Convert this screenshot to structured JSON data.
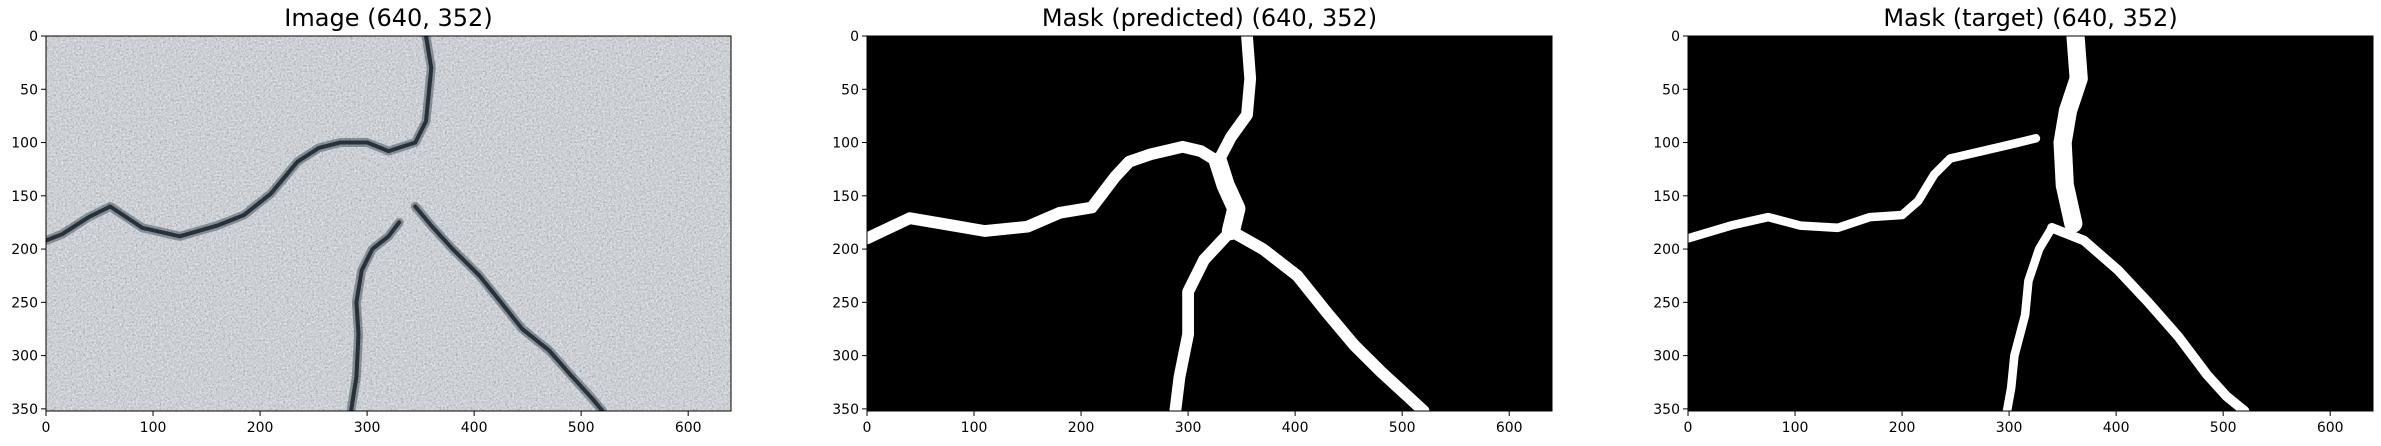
{
  "chart_data": [
    {
      "type": "image",
      "title": "Image (640, 352)",
      "xlim": [
        0,
        640
      ],
      "ylim": [
        352,
        0
      ],
      "xticks": [
        0,
        100,
        200,
        300,
        400,
        500,
        600
      ],
      "yticks": [
        0,
        50,
        100,
        150,
        200,
        250,
        300,
        350
      ],
      "content": "asphalt photograph with cracks",
      "cracks": [
        [
          [
            0,
            192
          ],
          [
            15,
            186
          ],
          [
            40,
            170
          ],
          [
            60,
            160
          ],
          [
            90,
            180
          ],
          [
            125,
            188
          ],
          [
            160,
            178
          ],
          [
            185,
            168
          ],
          [
            210,
            148
          ],
          [
            235,
            118
          ],
          [
            255,
            105
          ],
          [
            275,
            100
          ],
          [
            300,
            100
          ],
          [
            320,
            108
          ],
          [
            345,
            100
          ],
          [
            355,
            80
          ],
          [
            360,
            30
          ],
          [
            355,
            0
          ]
        ],
        [
          [
            345,
            160
          ],
          [
            360,
            178
          ],
          [
            380,
            200
          ],
          [
            405,
            225
          ],
          [
            425,
            250
          ],
          [
            445,
            275
          ],
          [
            470,
            295
          ],
          [
            490,
            318
          ],
          [
            510,
            340
          ],
          [
            520,
            352
          ]
        ],
        [
          [
            330,
            175
          ],
          [
            320,
            188
          ],
          [
            305,
            200
          ],
          [
            295,
            220
          ],
          [
            290,
            250
          ],
          [
            292,
            280
          ],
          [
            290,
            320
          ],
          [
            285,
            352
          ]
        ]
      ],
      "colors": {
        "asphalt": "#69737f",
        "crack": "#27313c"
      }
    },
    {
      "type": "mask",
      "title": "Mask (predicted) (640, 352)",
      "xlim": [
        0,
        640
      ],
      "ylim": [
        352,
        0
      ],
      "xticks": [
        0,
        100,
        200,
        300,
        400,
        500,
        600
      ],
      "yticks": [
        0,
        50,
        100,
        150,
        200,
        250,
        300,
        350
      ],
      "polylines": [
        {
          "points": [
            [
              0,
              190
            ],
            [
              40,
              171
            ],
            [
              75,
              177
            ],
            [
              110,
              183
            ],
            [
              150,
              179
            ],
            [
              180,
              166
            ],
            [
              210,
              161
            ],
            [
              232,
              132
            ],
            [
              245,
              118
            ],
            [
              265,
              111
            ],
            [
              295,
              104
            ],
            [
              312,
              108
            ],
            [
              328,
              118
            ],
            [
              340,
              95
            ],
            [
              355,
              74
            ],
            [
              358,
              40
            ],
            [
              355,
              0
            ]
          ],
          "width": 11
        },
        {
          "points": [
            [
              328,
              118
            ],
            [
              335,
              140
            ],
            [
              345,
              162
            ],
            [
              340,
              183
            ]
          ],
          "width": 17
        },
        {
          "points": [
            [
              340,
              183
            ],
            [
              370,
              200
            ],
            [
              402,
              225
            ],
            [
              430,
              260
            ],
            [
              455,
              290
            ],
            [
              480,
              315
            ],
            [
              505,
              338
            ],
            [
              520,
              352
            ]
          ],
          "width": 11
        },
        {
          "points": [
            [
              340,
              183
            ],
            [
              315,
              210
            ],
            [
              300,
              240
            ],
            [
              300,
              280
            ],
            [
              292,
              320
            ],
            [
              288,
              352
            ]
          ],
          "width": 11
        }
      ]
    },
    {
      "type": "mask",
      "title": "Mask (target) (640, 352)",
      "xlim": [
        0,
        640
      ],
      "ylim": [
        352,
        0
      ],
      "xticks": [
        0,
        100,
        200,
        300,
        400,
        500,
        600
      ],
      "yticks": [
        0,
        50,
        100,
        150,
        200,
        250,
        300,
        350
      ],
      "polylines": [
        {
          "points": [
            [
              0,
              190
            ],
            [
              40,
              178
            ],
            [
              75,
              170
            ],
            [
              105,
              178
            ],
            [
              140,
              180
            ],
            [
              170,
              170
            ],
            [
              200,
              168
            ],
            [
              215,
              155
            ],
            [
              230,
              130
            ],
            [
              245,
              115
            ],
            [
              275,
              108
            ],
            [
              305,
              101
            ],
            [
              325,
              96
            ]
          ],
          "width": 8
        },
        {
          "points": [
            [
              362,
              0
            ],
            [
              365,
              40
            ],
            [
              355,
              70
            ],
            [
              350,
              100
            ],
            [
              352,
              140
            ],
            [
              360,
              176
            ]
          ],
          "width": 17
        },
        {
          "points": [
            [
              340,
              180
            ],
            [
              370,
              192
            ],
            [
              402,
              220
            ],
            [
              430,
              250
            ],
            [
              458,
              282
            ],
            [
              485,
              318
            ],
            [
              503,
              338
            ],
            [
              520,
              352
            ]
          ],
          "width": 9
        },
        {
          "points": [
            [
              340,
              180
            ],
            [
              328,
              200
            ],
            [
              318,
              230
            ],
            [
              315,
              262
            ],
            [
              305,
              300
            ],
            [
              302,
              330
            ],
            [
              298,
              352
            ]
          ],
          "width": 8
        }
      ]
    }
  ]
}
